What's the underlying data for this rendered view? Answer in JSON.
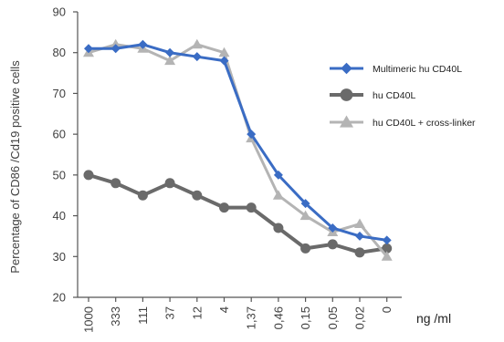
{
  "chart_data": {
    "type": "line",
    "title": "",
    "ylabel": "Percentage of CD86 /Cd19 positive cells",
    "xlabel": "",
    "x_unit": "ng /ml",
    "ylim": [
      20,
      90
    ],
    "yticks": [
      20,
      30,
      40,
      50,
      60,
      70,
      80,
      90
    ],
    "categories": [
      "1000",
      "333",
      "111",
      "37",
      "12",
      "4",
      "1,37",
      "0,46",
      "0,15",
      "0,05",
      "0,02",
      "0"
    ],
    "grid": false,
    "legend_position": "right",
    "series": [
      {
        "name": "Multimeric hu CD40L",
        "color": "#3a6cc4",
        "marker": "diamond",
        "values": [
          81,
          81,
          82,
          80,
          79,
          78,
          60,
          50,
          43,
          37,
          35,
          34
        ]
      },
      {
        "name": "hu CD40L",
        "color": "#6a6a6a",
        "marker": "circle",
        "values": [
          50,
          48,
          45,
          48,
          45,
          42,
          42,
          37,
          32,
          33,
          31,
          32
        ]
      },
      {
        "name": "hu CD40L + cross-linker",
        "color": "#b4b4b4",
        "marker": "triangle",
        "values": [
          80,
          82,
          81,
          78,
          82,
          80,
          59,
          45,
          40,
          36,
          38,
          30
        ]
      }
    ]
  }
}
